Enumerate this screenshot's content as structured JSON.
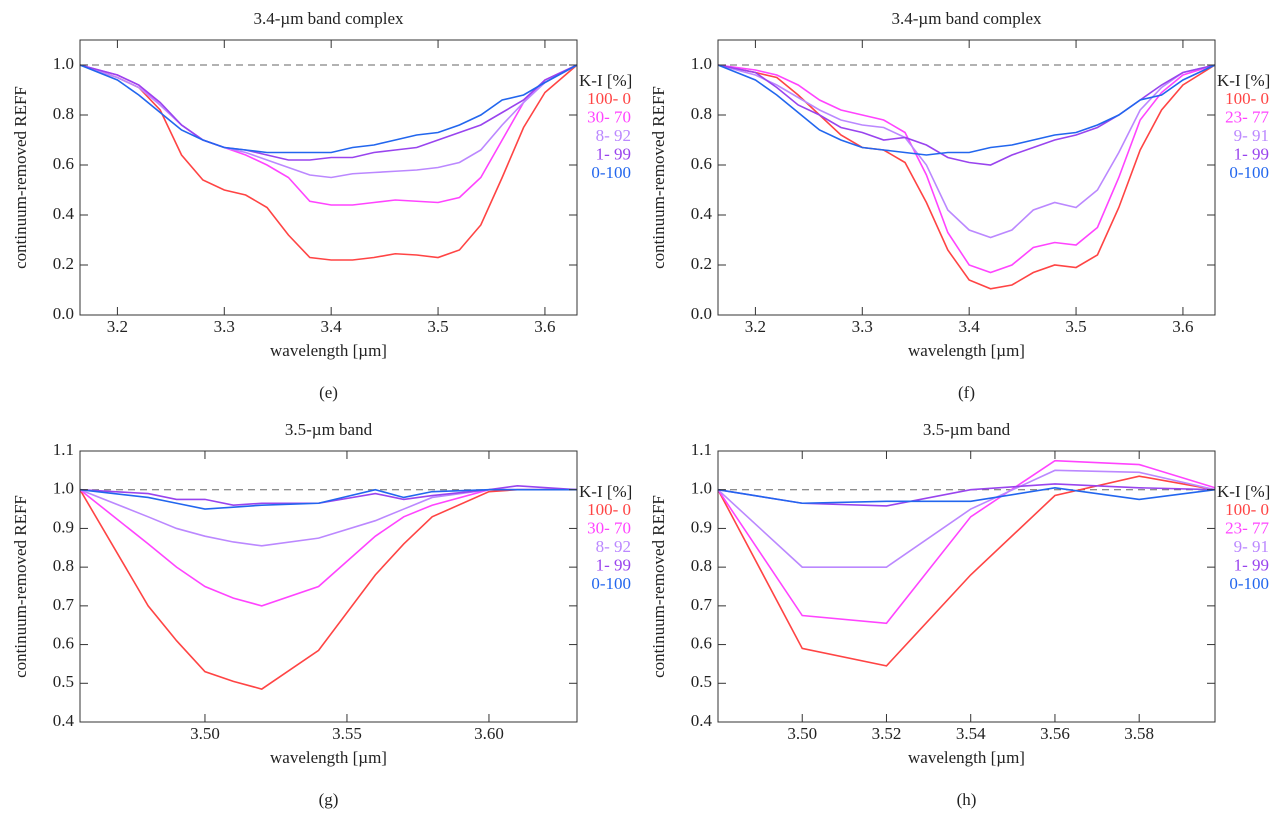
{
  "chart_data": [
    {
      "type": "line",
      "title": "3.4-µm band complex",
      "xlabel": "wavelength [µm]",
      "ylabel": "continuum-removed REFF",
      "panel_label": "(e)",
      "legend_title": "K-I [%]",
      "reference": 1,
      "xlim": [
        3.165,
        3.63
      ],
      "ylim": [
        0,
        1.1
      ],
      "xticks": [
        3.2,
        3.3,
        3.4,
        3.5,
        3.6
      ],
      "yticks": [
        {
          "value": 0,
          "label": "0.0"
        },
        0.2,
        0.4,
        0.6,
        0.8,
        {
          "value": 1,
          "label": "1.0"
        }
      ],
      "x": [
        3.165,
        3.2,
        3.22,
        3.24,
        3.26,
        3.28,
        3.3,
        3.32,
        3.34,
        3.36,
        3.38,
        3.4,
        3.42,
        3.44,
        3.46,
        3.48,
        3.5,
        3.52,
        3.54,
        3.56,
        3.58,
        3.6,
        3.63
      ],
      "series": [
        {
          "name": "100- 0",
          "color": "#ff4444",
          "values": [
            1.0,
            0.95,
            0.91,
            0.82,
            0.64,
            0.54,
            0.5,
            0.48,
            0.43,
            0.32,
            0.23,
            0.22,
            0.22,
            0.23,
            0.245,
            0.24,
            0.23,
            0.26,
            0.36,
            0.55,
            0.75,
            0.89,
            1.0
          ]
        },
        {
          "name": "30- 70",
          "color": "#ff44ff",
          "values": [
            1.0,
            0.96,
            0.92,
            0.84,
            0.76,
            0.7,
            0.67,
            0.64,
            0.6,
            0.55,
            0.455,
            0.44,
            0.44,
            0.45,
            0.46,
            0.455,
            0.45,
            0.47,
            0.55,
            0.7,
            0.85,
            0.94,
            1.0
          ]
        },
        {
          "name": "8- 92",
          "color": "#bb88ff",
          "values": [
            1.0,
            0.95,
            0.91,
            0.84,
            0.76,
            0.7,
            0.67,
            0.65,
            0.62,
            0.59,
            0.56,
            0.55,
            0.565,
            0.57,
            0.575,
            0.58,
            0.59,
            0.61,
            0.66,
            0.76,
            0.85,
            0.93,
            1.0
          ]
        },
        {
          "name": "1- 99",
          "color": "#9944ee",
          "values": [
            1.0,
            0.96,
            0.92,
            0.85,
            0.76,
            0.7,
            0.67,
            0.66,
            0.64,
            0.62,
            0.62,
            0.63,
            0.63,
            0.65,
            0.66,
            0.67,
            0.7,
            0.73,
            0.76,
            0.81,
            0.86,
            0.94,
            1.0
          ]
        },
        {
          "name": "0-100",
          "color": "#2266ee",
          "values": [
            1.0,
            0.94,
            0.88,
            0.81,
            0.74,
            0.7,
            0.67,
            0.66,
            0.65,
            0.65,
            0.65,
            0.65,
            0.67,
            0.68,
            0.7,
            0.72,
            0.73,
            0.76,
            0.8,
            0.86,
            0.88,
            0.93,
            1.0
          ]
        }
      ]
    },
    {
      "type": "line",
      "title": "3.4-µm band complex",
      "xlabel": "wavelength [µm]",
      "ylabel": "continuum-removed REFF",
      "panel_label": "(f)",
      "legend_title": "K-I [%]",
      "reference": 1,
      "xlim": [
        3.165,
        3.63
      ],
      "ylim": [
        0,
        1.1
      ],
      "xticks": [
        3.2,
        3.3,
        3.4,
        3.5,
        3.6
      ],
      "yticks": [
        {
          "value": 0,
          "label": "0.0"
        },
        0.2,
        0.4,
        0.6,
        0.8,
        {
          "value": 1,
          "label": "1.0"
        }
      ],
      "x": [
        3.165,
        3.2,
        3.22,
        3.24,
        3.26,
        3.28,
        3.3,
        3.32,
        3.34,
        3.36,
        3.38,
        3.4,
        3.42,
        3.44,
        3.46,
        3.48,
        3.5,
        3.52,
        3.54,
        3.56,
        3.58,
        3.6,
        3.63
      ],
      "series": [
        {
          "name": "100- 0",
          "color": "#ff4444",
          "values": [
            1.0,
            0.97,
            0.95,
            0.88,
            0.8,
            0.72,
            0.67,
            0.66,
            0.61,
            0.45,
            0.26,
            0.14,
            0.105,
            0.12,
            0.17,
            0.2,
            0.19,
            0.24,
            0.43,
            0.66,
            0.82,
            0.92,
            1.0
          ]
        },
        {
          "name": "23- 77",
          "color": "#ff44ff",
          "values": [
            1.0,
            0.98,
            0.96,
            0.92,
            0.86,
            0.82,
            0.8,
            0.78,
            0.73,
            0.56,
            0.33,
            0.2,
            0.17,
            0.2,
            0.27,
            0.29,
            0.28,
            0.35,
            0.55,
            0.78,
            0.89,
            0.96,
            1.0
          ]
        },
        {
          "name": "9- 91",
          "color": "#bb88ff",
          "values": [
            1.0,
            0.96,
            0.92,
            0.87,
            0.82,
            0.78,
            0.76,
            0.75,
            0.71,
            0.6,
            0.42,
            0.34,
            0.31,
            0.34,
            0.42,
            0.45,
            0.43,
            0.5,
            0.65,
            0.82,
            0.91,
            0.97,
            1.0
          ]
        },
        {
          "name": "1- 99",
          "color": "#9944ee",
          "values": [
            1.0,
            0.97,
            0.91,
            0.84,
            0.8,
            0.75,
            0.73,
            0.7,
            0.71,
            0.68,
            0.63,
            0.61,
            0.6,
            0.64,
            0.67,
            0.7,
            0.72,
            0.75,
            0.8,
            0.86,
            0.92,
            0.97,
            1.0
          ]
        },
        {
          "name": "0-100",
          "color": "#2266ee",
          "values": [
            1.0,
            0.94,
            0.88,
            0.81,
            0.74,
            0.7,
            0.67,
            0.66,
            0.65,
            0.64,
            0.65,
            0.65,
            0.67,
            0.68,
            0.7,
            0.72,
            0.73,
            0.76,
            0.8,
            0.86,
            0.88,
            0.94,
            1.0
          ]
        }
      ]
    },
    {
      "type": "line",
      "title": "3.5-µm band",
      "xlabel": "wavelength [µm]",
      "ylabel": "continuum-removed REFF",
      "panel_label": "(g)",
      "legend_title": "K-I [%]",
      "reference": 1,
      "xlim": [
        3.456,
        3.631
      ],
      "ylim": [
        0.4,
        1.1
      ],
      "xticks": [
        {
          "value": 3.5,
          "label": "3.50"
        },
        3.55,
        {
          "value": 3.6,
          "label": "3.60"
        }
      ],
      "yticks": [
        0.4,
        0.5,
        0.6,
        0.7,
        0.8,
        0.9,
        {
          "value": 1,
          "label": "1.0"
        },
        1.1
      ],
      "x": [
        3.456,
        3.48,
        3.49,
        3.5,
        3.51,
        3.52,
        3.54,
        3.56,
        3.57,
        3.58,
        3.6,
        3.61,
        3.631
      ],
      "series": [
        {
          "name": "100- 0",
          "color": "#ff4444",
          "values": [
            1.0,
            0.7,
            0.61,
            0.53,
            0.505,
            0.485,
            0.585,
            0.78,
            0.86,
            0.93,
            0.995,
            1.0,
            1.0
          ]
        },
        {
          "name": "30- 70",
          "color": "#ff44ff",
          "values": [
            1.0,
            0.86,
            0.8,
            0.75,
            0.72,
            0.7,
            0.75,
            0.88,
            0.93,
            0.96,
            1.0,
            1.0,
            1.0
          ]
        },
        {
          "name": "8- 92",
          "color": "#bb88ff",
          "values": [
            1.0,
            0.93,
            0.9,
            0.88,
            0.865,
            0.855,
            0.875,
            0.92,
            0.95,
            0.98,
            1.0,
            1.0,
            1.0
          ]
        },
        {
          "name": "1- 99",
          "color": "#9944ee",
          "values": [
            1.0,
            0.99,
            0.975,
            0.975,
            0.96,
            0.965,
            0.965,
            0.99,
            0.975,
            0.985,
            1.0,
            1.01,
            1.0
          ]
        },
        {
          "name": "0-100",
          "color": "#2266ee",
          "values": [
            1.0,
            0.98,
            0.965,
            0.95,
            0.955,
            0.96,
            0.965,
            1.0,
            0.98,
            0.995,
            1.0,
            1.0,
            1.0
          ]
        }
      ]
    },
    {
      "type": "line",
      "title": "3.5-µm band",
      "xlabel": "wavelength [µm]",
      "ylabel": "continuum-removed REFF",
      "panel_label": "(h)",
      "legend_title": "K-I [%]",
      "reference": 1,
      "xlim": [
        3.48,
        3.598
      ],
      "ylim": [
        0.4,
        1.1
      ],
      "xticks": [
        {
          "value": 3.5,
          "label": "3.50"
        },
        3.52,
        3.54,
        3.56,
        3.58
      ],
      "yticks": [
        0.4,
        0.5,
        0.6,
        0.7,
        0.8,
        0.9,
        {
          "value": 1,
          "label": "1.0"
        },
        1.1
      ],
      "x": [
        3.48,
        3.5,
        3.52,
        3.54,
        3.56,
        3.58,
        3.598
      ],
      "series": [
        {
          "name": "100- 0",
          "color": "#ff4444",
          "values": [
            1.0,
            0.59,
            0.545,
            0.78,
            0.985,
            1.035,
            1.0
          ]
        },
        {
          "name": "23- 77",
          "color": "#ff44ff",
          "values": [
            1.0,
            0.675,
            0.655,
            0.93,
            1.075,
            1.065,
            1.005
          ]
        },
        {
          "name": "9- 91",
          "color": "#bb88ff",
          "values": [
            1.0,
            0.8,
            0.8,
            0.95,
            1.05,
            1.045,
            1.0
          ]
        },
        {
          "name": "1- 99",
          "color": "#9944ee",
          "values": [
            1.0,
            0.965,
            0.958,
            1.0,
            1.015,
            1.005,
            1.0
          ]
        },
        {
          "name": "0-100",
          "color": "#2266ee",
          "values": [
            1.0,
            0.965,
            0.97,
            0.97,
            1.005,
            0.975,
            1.0
          ]
        }
      ]
    }
  ]
}
